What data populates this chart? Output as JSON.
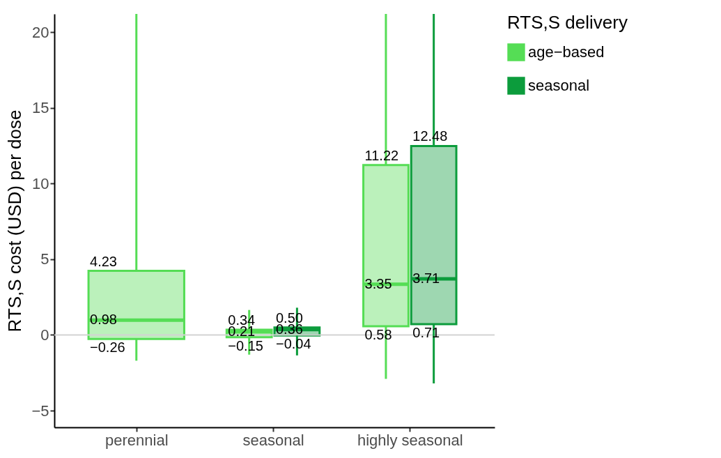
{
  "chart_data": {
    "type": "box",
    "ylabel": "RTS,S cost (USD) per dose",
    "legend_title": "RTS,S delivery",
    "categories": [
      "perennial",
      "seasonal",
      "highly seasonal"
    ],
    "series": [
      {
        "name": "age−based",
        "color": "#55dd55",
        "boxes": [
          {
            "low": -1.7,
            "q1": -0.26,
            "median": 0.98,
            "q3": 4.23,
            "high": 21.2
          },
          {
            "low": -1.3,
            "q1": -0.15,
            "median": 0.21,
            "q3": 0.34,
            "high": 1.65
          },
          {
            "low": -2.9,
            "q1": 0.58,
            "median": 3.35,
            "q3": 11.22,
            "high": 21.2
          }
        ]
      },
      {
        "name": "seasonal",
        "color": "#0c9c3c",
        "boxes": [
          null,
          {
            "low": -1.35,
            "q1": -0.04,
            "median": 0.36,
            "q3": 0.5,
            "high": 1.8
          },
          {
            "low": -3.2,
            "q1": 0.71,
            "median": 3.71,
            "q3": 12.48,
            "high": 21.2
          }
        ]
      }
    ],
    "annotations": [
      {
        "text": "4.23",
        "x": "perennial",
        "y": 4.23
      },
      {
        "text": "0.98",
        "x": "perennial",
        "y": 0.98
      },
      {
        "text": "−0.26",
        "x": "perennial",
        "y": -0.26
      },
      {
        "text": "0.34",
        "x": "seasonal",
        "y": 0.34
      },
      {
        "text": "0.21",
        "x": "seasonal",
        "y": 0.21
      },
      {
        "text": "−0.15",
        "x": "seasonal",
        "y": -0.15
      },
      {
        "text": "0.50",
        "x": "seasonal",
        "y": 0.5
      },
      {
        "text": "0.36",
        "x": "seasonal",
        "y": 0.36
      },
      {
        "text": "−0.04",
        "x": "seasonal",
        "y": -0.04
      },
      {
        "text": "11.22",
        "x": "highly seasonal",
        "y": 11.22
      },
      {
        "text": "3.35",
        "x": "highly seasonal",
        "y": 3.35
      },
      {
        "text": "0.58",
        "x": "highly seasonal",
        "y": 0.58
      },
      {
        "text": "12.48",
        "x": "highly seasonal",
        "y": 12.48
      },
      {
        "text": "3.71",
        "x": "highly seasonal",
        "y": 3.71
      },
      {
        "text": "0.71",
        "x": "highly seasonal",
        "y": 0.71
      }
    ],
    "ylim": [
      -6.1,
      21.2
    ],
    "yticks": [
      -5,
      0,
      5,
      10,
      15,
      20
    ],
    "ref_lines": [
      {
        "axis": "y",
        "value": 0,
        "color": "#d3d3d3"
      }
    ],
    "grid": false,
    "legend": "right"
  }
}
